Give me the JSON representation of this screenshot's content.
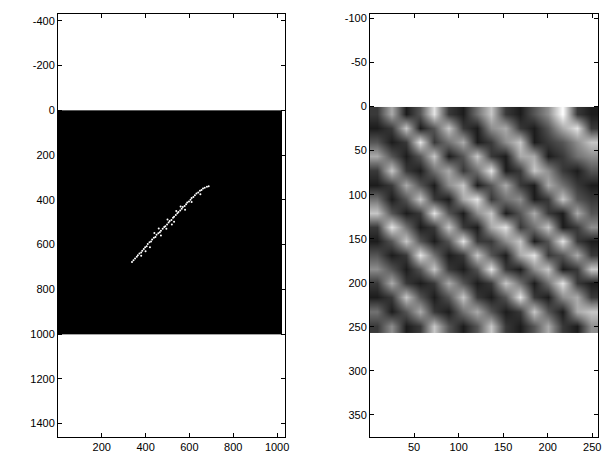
{
  "chart_data": [
    {
      "type": "heatmap",
      "x_edges": [
        0.5,
        1024.5
      ],
      "y_edges": [
        0.5,
        1000.5
      ],
      "cells": [
        [
          0
        ]
      ],
      "zlim": [
        0,
        9
      ],
      "xlim": [
        0.5,
        1036
      ],
      "ylim": [
        -430,
        1460
      ],
      "xticks": [
        200,
        400,
        600,
        800,
        1000
      ],
      "yticks": [
        -400,
        -200,
        0,
        200,
        400,
        600,
        800,
        1000,
        1200,
        1400
      ],
      "series": [
        {
          "type": "scatter",
          "color": "#ffffff",
          "marker": "circle",
          "x": [
            338,
            345,
            352,
            360,
            365,
            372,
            380,
            385,
            392,
            398,
            405,
            410,
            418,
            425,
            430,
            438,
            445,
            450,
            458,
            465,
            470,
            478,
            485,
            490,
            498,
            505,
            510,
            518,
            525,
            530,
            538,
            545,
            550,
            558,
            565,
            570,
            578,
            585,
            590,
            598,
            605,
            610,
            618,
            625,
            632,
            640,
            648,
            655,
            662,
            670,
            680,
            688,
            420,
            440,
            470,
            500,
            520,
            560,
            580,
            400,
            610,
            540,
            460,
            380,
            650,
            495,
            530
          ],
          "y": [
            678,
            670,
            662,
            655,
            648,
            640,
            636,
            628,
            620,
            612,
            608,
            598,
            590,
            586,
            578,
            570,
            566,
            556,
            550,
            545,
            538,
            530,
            522,
            518,
            510,
            502,
            495,
            490,
            480,
            476,
            468,
            460,
            455,
            448,
            440,
            432,
            428,
            420,
            412,
            408,
            400,
            392,
            388,
            380,
            372,
            368,
            360,
            356,
            350,
            346,
            342,
            340,
            612,
            548,
            560,
            488,
            510,
            430,
            445,
            630,
            410,
            450,
            528,
            650,
            375,
            530,
            498
          ]
        }
      ]
    },
    {
      "type": "heatmap",
      "x_edges": [
        0.5,
        16.5,
        32.5,
        48.5,
        64.5,
        80.5,
        96.5,
        112.5,
        128.5,
        144.5,
        160.5,
        176.5,
        192.5,
        208.5,
        224.5,
        240.5,
        256.5
      ],
      "y_edges": [
        0.5,
        16.5,
        32.5,
        48.5,
        64.5,
        80.5,
        96.5,
        112.5,
        128.5,
        144.5,
        160.5,
        176.5,
        192.5,
        208.5,
        224.5,
        240.5,
        256.5
      ],
      "cells": [
        [
          2,
          6,
          1,
          3,
          8,
          2,
          1,
          4,
          7,
          2,
          1,
          3,
          5,
          9,
          2,
          1
        ],
        [
          1,
          2,
          7,
          1,
          3,
          7,
          2,
          1,
          5,
          6,
          2,
          1,
          3,
          6,
          8,
          2
        ],
        [
          3,
          1,
          2,
          8,
          2,
          4,
          6,
          1,
          2,
          5,
          7,
          1,
          2,
          3,
          5,
          7
        ],
        [
          6,
          3,
          1,
          3,
          7,
          1,
          3,
          7,
          2,
          1,
          6,
          6,
          1,
          2,
          4,
          5
        ],
        [
          2,
          7,
          2,
          1,
          4,
          6,
          2,
          4,
          8,
          1,
          2,
          7,
          5,
          2,
          1,
          3
        ],
        [
          1,
          2,
          6,
          3,
          1,
          5,
          7,
          1,
          3,
          6,
          2,
          1,
          6,
          4,
          2,
          1
        ],
        [
          4,
          1,
          3,
          7,
          2,
          1,
          6,
          8,
          2,
          4,
          5,
          1,
          2,
          7,
          3,
          2
        ],
        [
          7,
          3,
          1,
          2,
          8,
          3,
          1,
          5,
          7,
          1,
          3,
          6,
          2,
          1,
          6,
          3
        ],
        [
          2,
          8,
          4,
          1,
          2,
          7,
          2,
          1,
          6,
          8,
          2,
          4,
          7,
          1,
          2,
          5
        ],
        [
          1,
          3,
          7,
          3,
          1,
          3,
          8,
          2,
          2,
          5,
          7,
          1,
          3,
          8,
          2,
          1
        ],
        [
          3,
          1,
          2,
          8,
          4,
          1,
          2,
          7,
          3,
          1,
          6,
          8,
          2,
          3,
          6,
          2
        ],
        [
          5,
          3,
          1,
          3,
          7,
          2,
          1,
          3,
          8,
          2,
          1,
          5,
          7,
          1,
          2,
          7
        ],
        [
          2,
          6,
          2,
          1,
          2,
          6,
          3,
          1,
          2,
          7,
          4,
          1,
          4,
          8,
          2,
          1
        ],
        [
          1,
          2,
          7,
          3,
          1,
          3,
          7,
          2,
          1,
          3,
          8,
          2,
          1,
          5,
          6,
          2
        ],
        [
          4,
          1,
          3,
          6,
          2,
          1,
          4,
          6,
          3,
          1,
          2,
          7,
          3,
          1,
          6,
          7
        ],
        [
          2,
          5,
          1,
          2,
          7,
          3,
          1,
          3,
          7,
          2,
          1,
          3,
          6,
          2,
          1,
          5
        ]
      ],
      "zlim": [
        0,
        9
      ],
      "xlim": [
        0.5,
        256.5
      ],
      "ylim": [
        -105,
        375
      ],
      "xticks": [
        50,
        100,
        150,
        200,
        250
      ],
      "yticks": [
        -100,
        -50,
        0,
        50,
        100,
        150,
        200,
        250,
        300,
        350
      ]
    }
  ]
}
